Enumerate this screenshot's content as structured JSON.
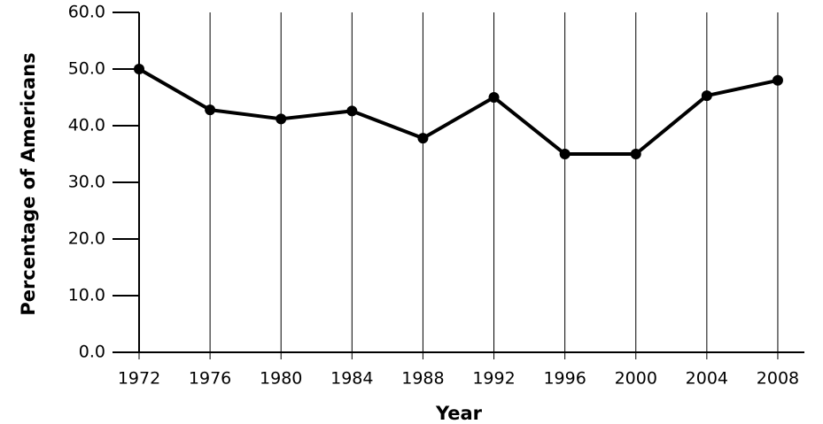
{
  "chart_data": {
    "type": "line",
    "x_label": "Year",
    "y_label": "Percentage of Americans",
    "x": [
      1972,
      1976,
      1980,
      1984,
      1988,
      1992,
      1996,
      2000,
      2004,
      2008
    ],
    "values": [
      50.0,
      42.8,
      41.2,
      42.6,
      37.8,
      45.0,
      35.0,
      35.0,
      45.3,
      48.0
    ],
    "color": "#000000",
    "xlim": [
      1972,
      2009.5
    ],
    "xticks": [
      1972,
      1976,
      1980,
      1984,
      1988,
      1992,
      1996,
      2000,
      2004,
      2008
    ],
    "ylim": [
      0,
      60
    ],
    "yticks": [
      {
        "value": 0,
        "label": "0.0"
      },
      {
        "value": 10,
        "label": "10.0"
      },
      {
        "value": 20,
        "label": "20.0"
      },
      {
        "value": 30,
        "label": "30.0"
      },
      {
        "value": 40,
        "label": "40.0"
      },
      {
        "value": 50,
        "label": "50.0"
      },
      {
        "value": 60,
        "label": "60.0"
      }
    ],
    "grid": true
  }
}
